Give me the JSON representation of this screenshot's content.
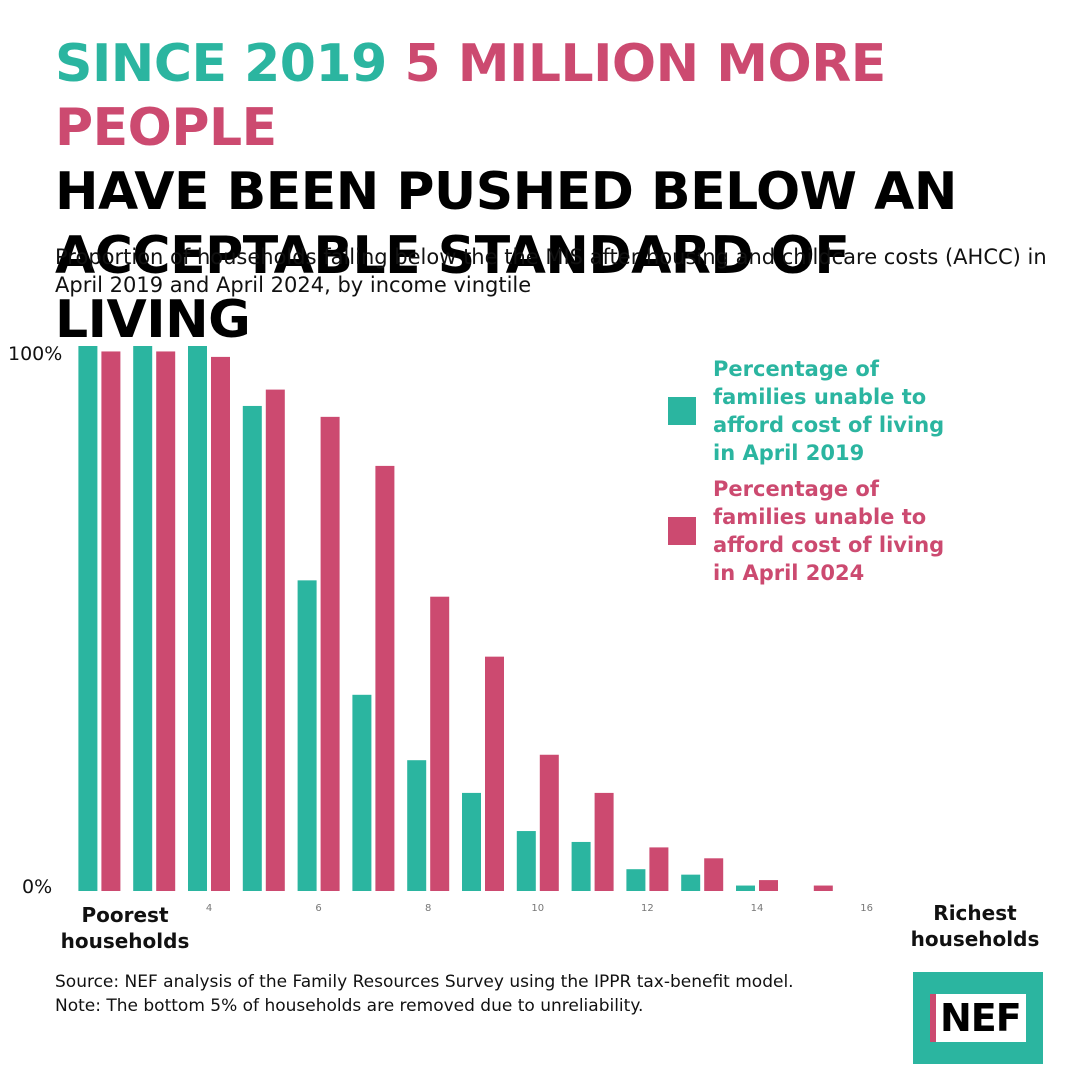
{
  "headline": {
    "part1": "SINCE 2019 ",
    "part2": "5 MILLION MORE PEOPLE",
    "line2": "HAVE BEEN PUSHED BELOW AN",
    "line3": "ACCEPTABLE STANDARD OF LIVING"
  },
  "subtitle": "Proportion of households falling below the the MIS after housing and childcare costs (AHCC) in April 2019 and April 2024, by income vingtile",
  "left_label": "Poorest households",
  "right_label": "Richest households",
  "source": "Source: NEF analysis of the Family Resources Survey using the IPPR tax-benefit model.",
  "note": "Note: The bottom 5% of households are removed due to unreliability.",
  "logo_text": "NEF",
  "colors": {
    "teal": "#2bb5a0",
    "pink": "#cc4a70"
  },
  "chart_data": {
    "type": "bar",
    "x": [
      2,
      3,
      4,
      5,
      6,
      7,
      8,
      9,
      10,
      11,
      12,
      13,
      14,
      15
    ],
    "x_ticks": [
      4,
      6,
      8,
      10,
      12,
      14,
      16
    ],
    "y_tick_labels": [
      "0%",
      "100%"
    ],
    "ylim": [
      0,
      100
    ],
    "xlim": [
      1.5,
      16
    ],
    "series": [
      {
        "name": "Percentage of families unable to afford cost of living in April 2019",
        "color": "#2bb5a0",
        "values": [
          100,
          100,
          100,
          89,
          57,
          36,
          24,
          18,
          11,
          9,
          4,
          3,
          1,
          0
        ]
      },
      {
        "name": "Percentage of families unable to afford cost of living in April 2024",
        "color": "#cc4a70",
        "values": [
          99,
          99,
          98,
          92,
          87,
          78,
          54,
          43,
          25,
          18,
          8,
          6,
          2,
          1
        ]
      }
    ],
    "legend_position": "right",
    "grid": false
  }
}
